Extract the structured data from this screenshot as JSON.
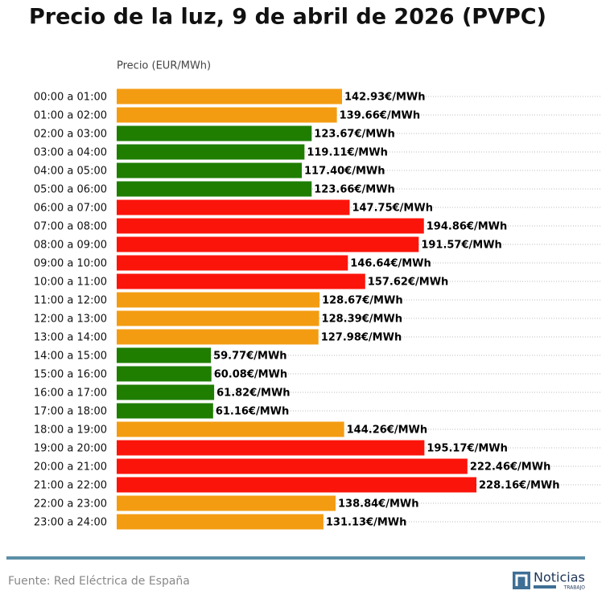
{
  "chart_data": {
    "type": "hbar",
    "title": "Precio de la luz, 9 de abril de 2026 (PVPC)",
    "x_label": "Precio (EUR/MWh)",
    "categories": [
      "00:00 a 01:00",
      "01:00 a 02:00",
      "02:00 a 03:00",
      "03:00 a 04:00",
      "04:00 a 05:00",
      "05:00 a 06:00",
      "06:00 a 07:00",
      "07:00 a 08:00",
      "08:00 a 09:00",
      "09:00 a 10:00",
      "10:00 a 11:00",
      "11:00 a 12:00",
      "12:00 a 13:00",
      "13:00 a 14:00",
      "14:00 a 15:00",
      "15:00 a 16:00",
      "16:00 a 17:00",
      "17:00 a 18:00",
      "18:00 a 19:00",
      "19:00 a 20:00",
      "20:00 a 21:00",
      "21:00 a 22:00",
      "22:00 a 23:00",
      "23:00 a 24:00"
    ],
    "values": [
      142.93,
      139.66,
      123.67,
      119.11,
      117.4,
      123.66,
      147.75,
      194.86,
      191.57,
      146.64,
      157.62,
      128.67,
      128.39,
      127.98,
      59.77,
      60.08,
      61.82,
      61.16,
      144.26,
      195.17,
      222.46,
      228.16,
      138.84,
      131.13
    ],
    "value_labels": [
      "142.93€/MWh",
      "139.66€/MWh",
      "123.67€/MWh",
      "119.11€/MWh",
      "117.40€/MWh",
      "123.66€/MWh",
      "147.75€/MWh",
      "194.86€/MWh",
      "191.57€/MWh",
      "146.64€/MWh",
      "157.62€/MWh",
      "128.67€/MWh",
      "128.39€/MWh",
      "127.98€/MWh",
      "59.77€/MWh",
      "60.08€/MWh",
      "61.82€/MWh",
      "61.16€/MWh",
      "144.26€/MWh",
      "195.17€/MWh",
      "222.46€/MWh",
      "228.16€/MWh",
      "138.84€/MWh",
      "131.13€/MWh"
    ],
    "colors": [
      "#f39c12",
      "#f39c12",
      "#1f7d00",
      "#1f7d00",
      "#1f7d00",
      "#1f7d00",
      "#fb140a",
      "#fb140a",
      "#fb140a",
      "#fb140a",
      "#fb140a",
      "#f39c12",
      "#f39c12",
      "#f39c12",
      "#1f7d00",
      "#1f7d00",
      "#1f7d00",
      "#1f7d00",
      "#f39c12",
      "#fb140a",
      "#fb140a",
      "#fb140a",
      "#f39c12",
      "#f39c12"
    ],
    "source": "Fuente: Red Eléctrica de España",
    "logo": {
      "name": "Noticias",
      "tagline": "TRABAJO"
    }
  }
}
